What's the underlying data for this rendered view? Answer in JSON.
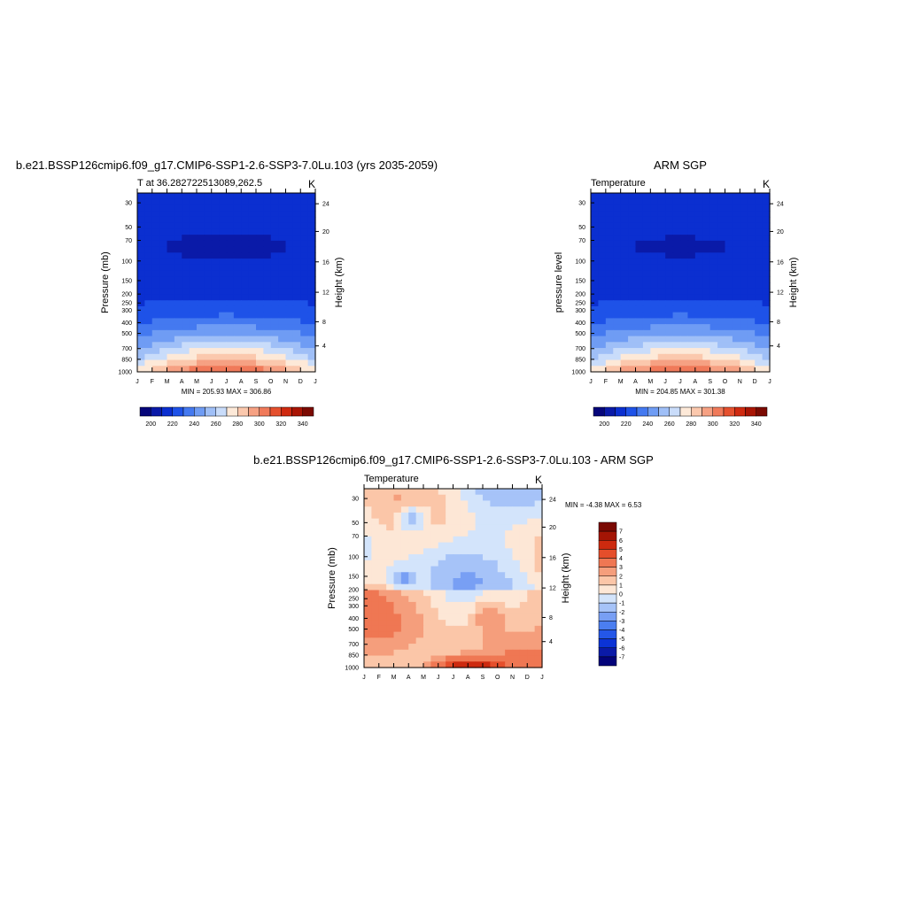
{
  "colors": {
    "temp_scale": [
      "#06067a",
      "#0a1aa8",
      "#0b2fd0",
      "#1e52e8",
      "#4479f0",
      "#6f9cf4",
      "#9fbff7",
      "#c9dcfa",
      "#fde9d8",
      "#fbc8ad",
      "#f6a183",
      "#f07a5a",
      "#e5502e",
      "#cf2a10",
      "#a91505",
      "#7b0a02"
    ],
    "diff_scale": [
      "#03037a",
      "#0a1aa8",
      "#0b33d6",
      "#2457e8",
      "#4b7ef0",
      "#789ff4",
      "#a6c3f8",
      "#d3e4fb",
      "#fde7d6",
      "#fbc6a8",
      "#f59e7c",
      "#ef7753",
      "#e54e2b",
      "#cd2a0f",
      "#a41505",
      "#7a0902"
    ]
  },
  "chart_data": [
    {
      "type": "heatmap",
      "title": "b.e21.BSSP126cmip6.f09_g17.CMIP6-SSP1-2.6-SSP3-7.0Lu.103 (yrs 2035-2059)",
      "subtitle_left": "T at 36.282722513089,262.5",
      "subtitle_right": "K",
      "ylabel": "Pressure (mb)",
      "ylabel_right": "Height (km)",
      "x_ticks": [
        "J",
        "F",
        "M",
        "A",
        "M",
        "J",
        "J",
        "A",
        "S",
        "O",
        "N",
        "D",
        "J"
      ],
      "y_ticks": [
        "30",
        "50",
        "70",
        "100",
        "150",
        "200",
        "250",
        "300",
        "400",
        "500",
        "700",
        "850",
        "1000"
      ],
      "y_ticks_right": [
        "24",
        "20",
        "16",
        "12",
        "8",
        "4"
      ],
      "stats": "MIN = 205.93  MAX = 306.86",
      "colorbar_labels": [
        "200",
        "220",
        "240",
        "260",
        "280",
        "300",
        "320",
        "340"
      ],
      "z_min": 205.93,
      "z_max": 306.86
    },
    {
      "type": "heatmap",
      "title": "ARM SGP",
      "subtitle_left": "Temperature",
      "subtitle_right": "K",
      "ylabel": "pressure level",
      "ylabel_right": "Height (km)",
      "x_ticks": [
        "J",
        "F",
        "M",
        "A",
        "M",
        "J",
        "J",
        "A",
        "S",
        "O",
        "N",
        "D",
        "J"
      ],
      "y_ticks": [
        "30",
        "50",
        "70",
        "100",
        "150",
        "200",
        "250",
        "300",
        "400",
        "500",
        "700",
        "850",
        "1000"
      ],
      "y_ticks_right": [
        "24",
        "20",
        "16",
        "12",
        "8",
        "4"
      ],
      "stats": "MIN = 204.85  MAX = 301.38",
      "colorbar_labels": [
        "200",
        "220",
        "240",
        "260",
        "280",
        "300",
        "320",
        "340"
      ],
      "z_min": 204.85,
      "z_max": 301.38
    },
    {
      "type": "heatmap",
      "title": "b.e21.BSSP126cmip6.f09_g17.CMIP6-SSP1-2.6-SSP3-7.0Lu.103 - ARM SGP",
      "subtitle_left": "Temperature",
      "subtitle_right": "K",
      "ylabel": "Pressure (mb)",
      "ylabel_right": "Height (km)",
      "x_ticks": [
        "J",
        "F",
        "M",
        "A",
        "M",
        "J",
        "J",
        "A",
        "S",
        "O",
        "N",
        "D",
        "J"
      ],
      "y_ticks": [
        "30",
        "50",
        "70",
        "100",
        "150",
        "200",
        "250",
        "300",
        "400",
        "500",
        "700",
        "850",
        "1000"
      ],
      "y_ticks_right": [
        "24",
        "20",
        "16",
        "12",
        "8",
        "4"
      ],
      "stats": "MIN =  -4.38  MAX =   6.53",
      "colorbar_labels": [
        "7",
        "6",
        "5",
        "4",
        "3",
        "2",
        "1",
        "0",
        "-1",
        "-2",
        "-3",
        "-4",
        "-5",
        "-6",
        "-7"
      ],
      "z_min": -4.38,
      "z_max": 6.53
    }
  ]
}
